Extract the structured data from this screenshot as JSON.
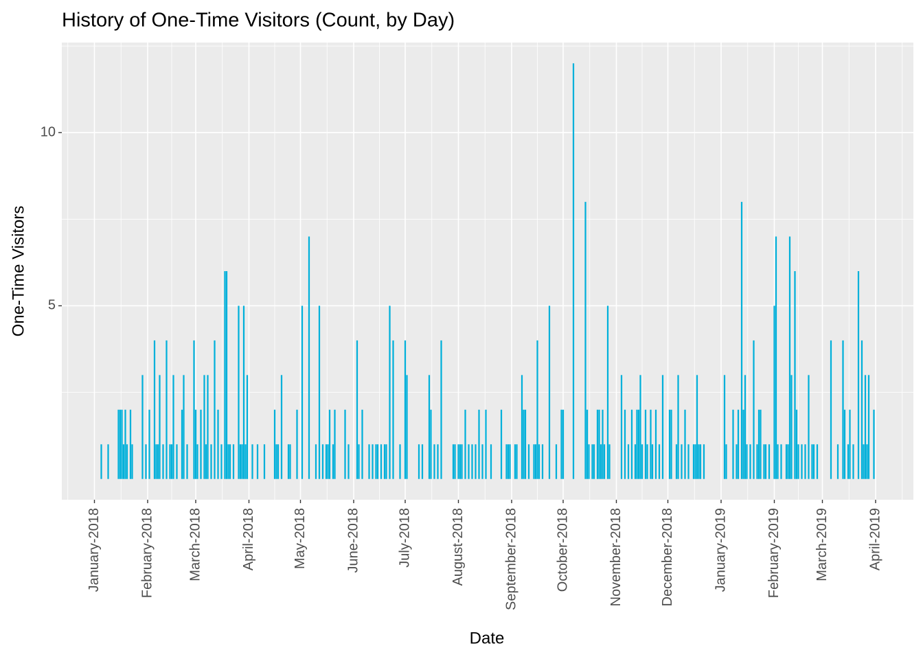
{
  "chart_data": {
    "type": "bar",
    "title": "History of One-Time Visitors (Count, by Day)",
    "x_label": "Date",
    "y_label": "One-Time Visitors",
    "color": "#00B0DA",
    "grid": true,
    "xlim": [
      "2017-12-13",
      "2019-04-23"
    ],
    "ylim": [
      -0.6,
      12.6
    ],
    "yticks": [
      5,
      10
    ],
    "xticks": [
      {
        "value": "2018-01-01",
        "label": "January-2018"
      },
      {
        "value": "2018-02-01",
        "label": "February-2018"
      },
      {
        "value": "2018-03-01",
        "label": "March-2018"
      },
      {
        "value": "2018-04-01",
        "label": "April-2018"
      },
      {
        "value": "2018-05-01",
        "label": "May-2018"
      },
      {
        "value": "2018-06-01",
        "label": "June-2018"
      },
      {
        "value": "2018-07-01",
        "label": "July-2018"
      },
      {
        "value": "2018-08-01",
        "label": "August-2018"
      },
      {
        "value": "2018-09-01",
        "label": "September-2018"
      },
      {
        "value": "2018-10-01",
        "label": "October-2018"
      },
      {
        "value": "2018-11-01",
        "label": "November-2018"
      },
      {
        "value": "2018-12-01",
        "label": "December-2018"
      },
      {
        "value": "2019-01-01",
        "label": "January-2019"
      },
      {
        "value": "2019-02-01",
        "label": "February-2019"
      },
      {
        "value": "2019-03-01",
        "label": "March-2019"
      },
      {
        "value": "2019-04-01",
        "label": "April-2019"
      }
    ],
    "x": [
      "2018-01-05",
      "2018-01-09",
      "2018-01-15",
      "2018-01-16",
      "2018-01-17",
      "2018-01-18",
      "2018-01-19",
      "2018-01-20",
      "2018-01-22",
      "2018-01-23",
      "2018-01-29",
      "2018-01-31",
      "2018-02-02",
      "2018-02-05",
      "2018-02-06",
      "2018-02-07",
      "2018-02-08",
      "2018-02-10",
      "2018-02-12",
      "2018-02-14",
      "2018-02-15",
      "2018-02-16",
      "2018-02-18",
      "2018-02-21",
      "2018-02-22",
      "2018-02-24",
      "2018-02-28",
      "2018-03-01",
      "2018-03-02",
      "2018-03-04",
      "2018-03-06",
      "2018-03-07",
      "2018-03-08",
      "2018-03-10",
      "2018-03-12",
      "2018-03-14",
      "2018-03-16",
      "2018-03-18",
      "2018-03-19",
      "2018-03-20",
      "2018-03-21",
      "2018-03-23",
      "2018-03-26",
      "2018-03-27",
      "2018-03-28",
      "2018-03-29",
      "2018-03-30",
      "2018-03-31",
      "2018-04-03",
      "2018-04-06",
      "2018-04-10",
      "2018-04-16",
      "2018-04-17",
      "2018-04-18",
      "2018-04-20",
      "2018-04-24",
      "2018-04-25",
      "2018-04-29",
      "2018-05-02",
      "2018-05-06",
      "2018-05-10",
      "2018-05-12",
      "2018-05-14",
      "2018-05-16",
      "2018-05-17",
      "2018-05-18",
      "2018-05-20",
      "2018-05-21",
      "2018-05-27",
      "2018-05-29",
      "2018-06-03",
      "2018-06-04",
      "2018-06-06",
      "2018-06-10",
      "2018-06-12",
      "2018-06-14",
      "2018-06-15",
      "2018-06-17",
      "2018-06-19",
      "2018-06-20",
      "2018-06-22",
      "2018-06-24",
      "2018-06-28",
      "2018-07-01",
      "2018-07-02",
      "2018-07-09",
      "2018-07-11",
      "2018-07-15",
      "2018-07-16",
      "2018-07-18",
      "2018-07-20",
      "2018-07-22",
      "2018-07-29",
      "2018-07-30",
      "2018-08-01",
      "2018-08-02",
      "2018-08-03",
      "2018-08-05",
      "2018-08-07",
      "2018-08-09",
      "2018-08-11",
      "2018-08-13",
      "2018-08-15",
      "2018-08-17",
      "2018-08-20",
      "2018-08-26",
      "2018-08-29",
      "2018-08-30",
      "2018-08-31",
      "2018-09-03",
      "2018-09-04",
      "2018-09-07",
      "2018-09-08",
      "2018-09-09",
      "2018-09-11",
      "2018-09-14",
      "2018-09-15",
      "2018-09-16",
      "2018-09-17",
      "2018-09-19",
      "2018-09-23",
      "2018-09-27",
      "2018-09-30",
      "2018-10-01",
      "2018-10-07",
      "2018-10-14",
      "2018-10-15",
      "2018-10-16",
      "2018-10-18",
      "2018-10-19",
      "2018-10-21",
      "2018-10-22",
      "2018-10-23",
      "2018-10-24",
      "2018-10-25",
      "2018-10-27",
      "2018-10-28",
      "2018-11-04",
      "2018-11-06",
      "2018-11-08",
      "2018-11-10",
      "2018-11-12",
      "2018-11-13",
      "2018-11-14",
      "2018-11-15",
      "2018-11-16",
      "2018-11-18",
      "2018-11-19",
      "2018-11-21",
      "2018-11-22",
      "2018-11-24",
      "2018-11-26",
      "2018-11-28",
      "2018-12-02",
      "2018-12-03",
      "2018-12-06",
      "2018-12-07",
      "2018-12-09",
      "2018-12-11",
      "2018-12-13",
      "2018-12-16",
      "2018-12-17",
      "2018-12-18",
      "2018-12-19",
      "2018-12-20",
      "2018-12-22",
      "2019-01-03",
      "2019-01-04",
      "2019-01-08",
      "2019-01-10",
      "2019-01-11",
      "2019-01-13",
      "2019-01-14",
      "2019-01-15",
      "2019-01-16",
      "2019-01-18",
      "2019-01-20",
      "2019-01-22",
      "2019-01-23",
      "2019-01-24",
      "2019-01-26",
      "2019-01-27",
      "2019-01-29",
      "2019-02-01",
      "2019-02-02",
      "2019-02-03",
      "2019-02-05",
      "2019-02-08",
      "2019-02-09",
      "2019-02-10",
      "2019-02-11",
      "2019-02-13",
      "2019-02-14",
      "2019-02-15",
      "2019-02-17",
      "2019-02-19",
      "2019-02-21",
      "2019-02-23",
      "2019-02-24",
      "2019-02-26",
      "2019-03-06",
      "2019-03-10",
      "2019-03-13",
      "2019-03-14",
      "2019-03-16",
      "2019-03-17",
      "2019-03-19",
      "2019-03-22",
      "2019-03-24",
      "2019-03-25",
      "2019-03-26",
      "2019-03-27",
      "2019-03-28",
      "2019-03-31"
    ],
    "values": [
      1,
      1,
      2,
      2,
      2,
      1,
      2,
      1,
      2,
      1,
      3,
      1,
      2,
      4,
      1,
      1,
      3,
      1,
      4,
      1,
      1,
      3,
      1,
      2,
      3,
      1,
      4,
      2,
      1,
      2,
      3,
      1,
      3,
      1,
      4,
      2,
      1,
      6,
      6,
      1,
      1,
      1,
      5,
      1,
      1,
      5,
      1,
      3,
      1,
      1,
      1,
      2,
      1,
      1,
      3,
      1,
      1,
      2,
      5,
      7,
      1,
      5,
      1,
      1,
      1,
      2,
      1,
      2,
      2,
      1,
      4,
      1,
      2,
      1,
      1,
      1,
      1,
      1,
      1,
      1,
      5,
      4,
      1,
      4,
      3,
      1,
      1,
      3,
      2,
      1,
      1,
      4,
      1,
      1,
      1,
      1,
      1,
      2,
      1,
      1,
      1,
      2,
      1,
      2,
      1,
      2,
      1,
      1,
      1,
      1,
      1,
      3,
      2,
      2,
      1,
      1,
      1,
      4,
      1,
      1,
      5,
      1,
      2,
      2,
      12,
      8,
      2,
      1,
      1,
      1,
      2,
      2,
      1,
      2,
      1,
      5,
      1,
      3,
      2,
      1,
      2,
      1,
      2,
      2,
      3,
      1,
      2,
      1,
      2,
      1,
      2,
      1,
      3,
      2,
      2,
      1,
      3,
      1,
      2,
      1,
      1,
      1,
      3,
      1,
      1,
      1,
      3,
      1,
      2,
      1,
      2,
      8,
      2,
      3,
      1,
      1,
      4,
      1,
      2,
      2,
      1,
      1,
      1,
      5,
      7,
      1,
      1,
      1,
      1,
      7,
      3,
      6,
      2,
      1,
      1,
      1,
      3,
      1,
      1,
      1,
      4,
      1,
      4,
      2,
      1,
      2,
      1,
      6,
      4,
      1,
      3,
      1,
      3,
      2
    ]
  }
}
